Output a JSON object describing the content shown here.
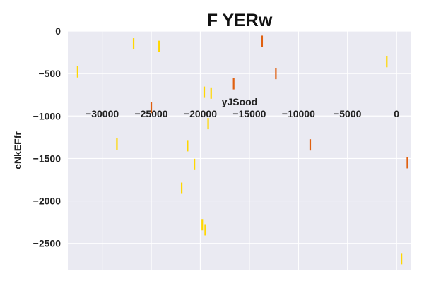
{
  "chart_data": {
    "type": "scatter",
    "marker": "vertical-line",
    "title": "F YERw",
    "xlabel": "yJSood",
    "ylabel": "cNkEFfr",
    "xlim": [
      -33500,
      1500
    ],
    "ylim": [
      -2810,
      0
    ],
    "x_ticks": [
      -30000,
      -25000,
      -20000,
      -15000,
      -10000,
      -5000,
      0
    ],
    "x_tick_labels": [
      "−30000",
      "−25000",
      "−20000",
      "−15000",
      "−10000",
      "−5000",
      "0"
    ],
    "y_ticks": [
      0,
      -500,
      -1000,
      -1500,
      -2000,
      -2500
    ],
    "y_tick_labels": [
      "0",
      "−500",
      "−1000",
      "−1500",
      "−2000",
      "−2500"
    ],
    "grid": true,
    "series": [
      {
        "color": "#FFD700",
        "points": [
          {
            "x": -32500,
            "y": -480
          },
          {
            "x": -26800,
            "y": -150
          },
          {
            "x": -24200,
            "y": -180
          },
          {
            "x": -28500,
            "y": -1330
          },
          {
            "x": -21300,
            "y": -1350
          },
          {
            "x": -21900,
            "y": -1850
          },
          {
            "x": -20600,
            "y": -1570
          },
          {
            "x": -19800,
            "y": -2280
          },
          {
            "x": -19500,
            "y": -2340
          },
          {
            "x": -19600,
            "y": -720
          },
          {
            "x": -18900,
            "y": -730
          },
          {
            "x": -19200,
            "y": -1090
          },
          {
            "x": -1000,
            "y": -360
          },
          {
            "x": 500,
            "y": -2680
          }
        ]
      },
      {
        "color": "#E06010",
        "points": [
          {
            "x": -25000,
            "y": -900
          },
          {
            "x": -16600,
            "y": -620
          },
          {
            "x": -13700,
            "y": -120
          },
          {
            "x": -12300,
            "y": -500
          },
          {
            "x": -8800,
            "y": -1340
          },
          {
            "x": 1100,
            "y": -1550
          }
        ]
      }
    ]
  }
}
